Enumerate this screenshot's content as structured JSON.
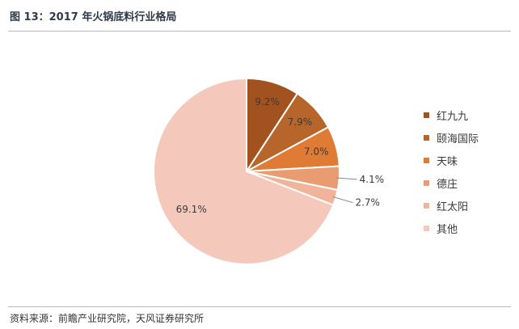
{
  "figure": {
    "title": "图 13：2017 年火锅底料行业格局",
    "source": "资料来源：前瞻产业研究院，天风证券研究所"
  },
  "chart_data": {
    "type": "pie",
    "title": "",
    "legend_position": "right",
    "slices": [
      {
        "label": "红九九",
        "value": 9.2,
        "value_label": "9.2%",
        "color": "#a1521f"
      },
      {
        "label": "颐海国际",
        "value": 7.9,
        "value_label": "7.9%",
        "color": "#b8652c"
      },
      {
        "label": "天味",
        "value": 7.0,
        "value_label": "7.0%",
        "color": "#e07b35"
      },
      {
        "label": "德庄",
        "value": 4.1,
        "value_label": "4.1%",
        "color": "#e99b72"
      },
      {
        "label": "红太阳",
        "value": 2.7,
        "value_label": "2.7%",
        "color": "#f0b49a"
      },
      {
        "label": "其他",
        "value": 69.1,
        "value_label": "69.1%",
        "color": "#f5c8bc"
      }
    ]
  }
}
